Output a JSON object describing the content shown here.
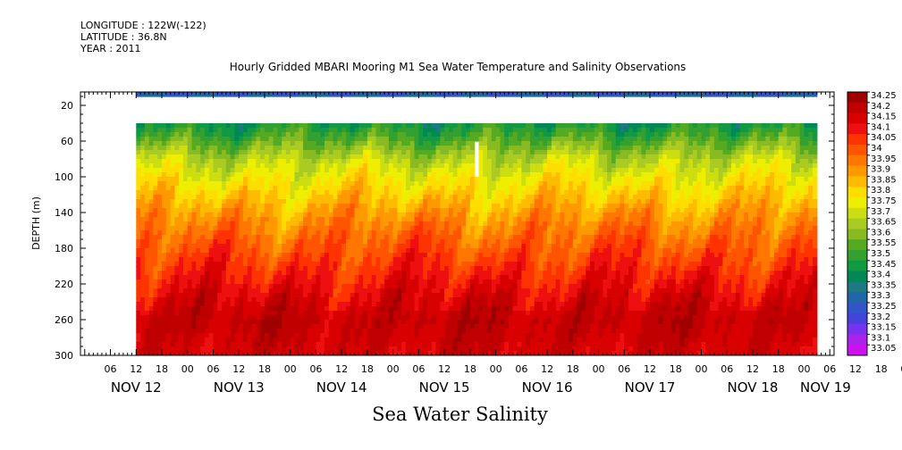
{
  "meta": {
    "longitude": "LONGITUDE : 122W(-122)",
    "latitude": "LATITUDE : 36.8N",
    "year": "YEAR : 2011"
  },
  "chart_data": {
    "type": "heatmap",
    "title": "Hourly Gridded MBARI Mooring M1 Sea Water Temperature and Salinity Observations",
    "xlabel": "Sea Water Salinity",
    "ylabel": "DEPTH (m)",
    "ylim": [
      300,
      5
    ],
    "y_ticks": [
      20,
      60,
      100,
      140,
      180,
      220,
      260,
      300
    ],
    "x_hour_ticks": [
      "06",
      "12",
      "18",
      "00",
      "06",
      "12",
      "18",
      "00",
      "06",
      "12",
      "18",
      "00",
      "06",
      "12",
      "18",
      "00",
      "06",
      "12",
      "18",
      "00",
      "06",
      "12",
      "18",
      "00",
      "06",
      "12",
      "18",
      "00",
      "06",
      "12",
      "18",
      "00"
    ],
    "x_day_labels": [
      "NOV 12",
      "NOV 13",
      "NOV 14",
      "NOV 15",
      "NOV 16",
      "NOV 17",
      "NOV 18",
      "NOV 19"
    ],
    "data_start": "NOV 12 12:00",
    "data_end": "NOV 19 03:00",
    "depth_levels": [
      10,
      40,
      60,
      80,
      100,
      120,
      140,
      160,
      180,
      200,
      220,
      240,
      260,
      280,
      300
    ],
    "profile_salinity": [
      33.3,
      33.47,
      33.58,
      33.7,
      33.78,
      33.85,
      33.92,
      33.98,
      34.03,
      34.08,
      34.13,
      34.18,
      34.22,
      34.2,
      34.18
    ],
    "missing": [
      {
        "depth_range": [
          12,
          40
        ],
        "time_range": [
          "NOV 12 12:00",
          "NOV 19 03:00"
        ],
        "note": "no data between surface sensor and 40 m"
      },
      {
        "depth_range": [
          60,
          100
        ],
        "time_range": [
          "NOV 15 19:00",
          "NOV 15 20:00"
        ]
      }
    ],
    "colorbar": {
      "levels": [
        "34.25",
        "34.2",
        "34.15",
        "34.1",
        "34.05",
        "34",
        "33.95",
        "33.9",
        "33.85",
        "33.8",
        "33.75",
        "33.7",
        "33.65",
        "33.6",
        "33.55",
        "33.5",
        "33.45",
        "33.4",
        "33.35",
        "33.3",
        "33.25",
        "33.2",
        "33.15",
        "33.1",
        "33.05"
      ],
      "colors": [
        "#a00000",
        "#c00000",
        "#d80000",
        "#ee1010",
        "#ff3300",
        "#ff5500",
        "#ff7700",
        "#ff9900",
        "#ffbb00",
        "#ffdd00",
        "#eeee00",
        "#ccdd11",
        "#aacc22",
        "#88bb22",
        "#55aa22",
        "#33a030",
        "#119944",
        "#008855",
        "#1d7a80",
        "#2266aa",
        "#3355cc",
        "#4444dd",
        "#7733ee",
        "#aa22ee",
        "#cc11ee"
      ]
    }
  }
}
